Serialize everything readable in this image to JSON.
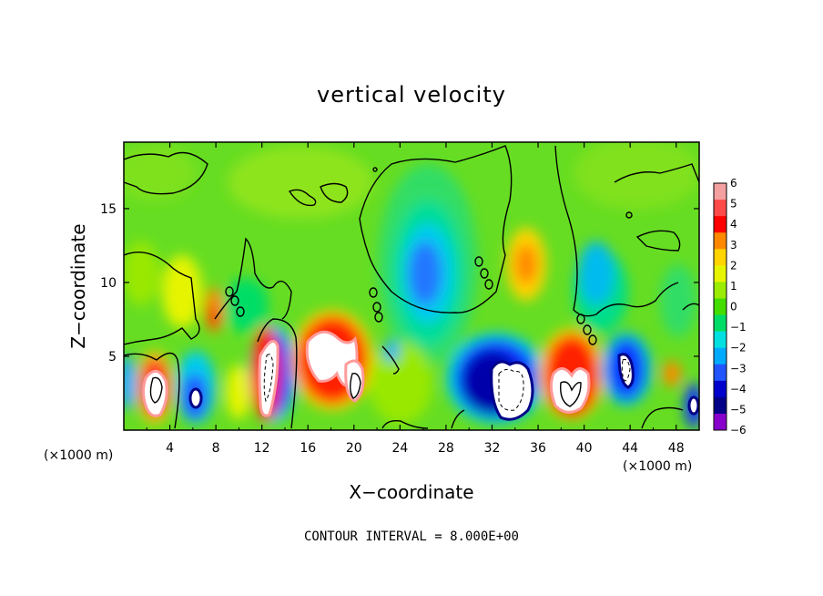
{
  "chart_data": {
    "type": "heatmap",
    "title": "vertical velocity",
    "xlabel": "X−coordinate",
    "ylabel": "Z−coordinate",
    "x_unit_left": "(×1000 m)",
    "x_unit_right": "(×1000 m)",
    "xlim": [
      0,
      50
    ],
    "ylim": [
      0,
      19.5
    ],
    "x_ticks": [
      4,
      8,
      12,
      16,
      20,
      24,
      28,
      32,
      36,
      40,
      44,
      48
    ],
    "y_ticks": [
      5,
      10,
      15
    ],
    "colorbar": {
      "ticks": [
        6,
        5,
        4,
        3,
        2,
        1,
        0,
        -1,
        -2,
        -3,
        -4,
        -5,
        -6
      ],
      "range": [
        -6,
        6
      ],
      "colors": [
        "#f4a0a0",
        "#ff4a4a",
        "#ff0000",
        "#ff8800",
        "#ffd400",
        "#e6f400",
        "#9aec00",
        "#44dd00",
        "#00dd66",
        "#00e0e0",
        "#00aaff",
        "#2255ff",
        "#0000cc",
        "#000088",
        "#8800cc"
      ]
    },
    "features": [
      {
        "x": 2.8,
        "z": 2.7,
        "value": 6
      },
      {
        "x": 6.2,
        "z": 2.4,
        "value": -6
      },
      {
        "x": 7.6,
        "z": 7.6,
        "value": 3
      },
      {
        "x": 12.6,
        "z": 3.6,
        "value": 6
      },
      {
        "x": 13.8,
        "z": 3.8,
        "value": -5
      },
      {
        "x": 18.3,
        "z": 5.2,
        "value": 6
      },
      {
        "x": 20.1,
        "z": 3.2,
        "value": 6
      },
      {
        "x": 25.9,
        "z": 10.8,
        "value": -3
      },
      {
        "x": 30.4,
        "z": 3.6,
        "value": -5
      },
      {
        "x": 33.4,
        "z": 2.8,
        "value": -6
      },
      {
        "x": 34.8,
        "z": 11.2,
        "value": 3
      },
      {
        "x": 38.8,
        "z": 3.8,
        "value": 6
      },
      {
        "x": 43.4,
        "z": 4.6,
        "value": -6
      },
      {
        "x": 47.0,
        "z": 3.6,
        "value": 4
      },
      {
        "x": 49.4,
        "z": 1.8,
        "value": -6
      }
    ]
  },
  "footer": "CONTOUR INTERVAL = 8.000E+00"
}
